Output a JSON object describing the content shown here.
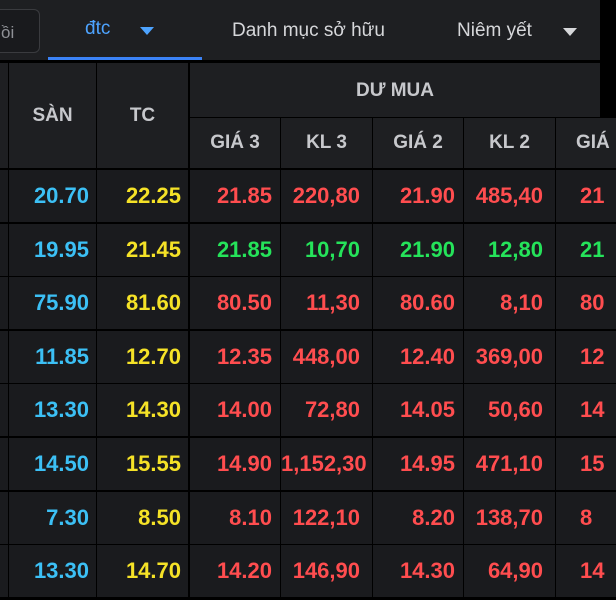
{
  "topbar": {
    "search_placeholder": "ồi",
    "tab_watchlist": "đtc",
    "tab_holdings": "Danh mục sở hữu",
    "tab_listing": "Niêm yết"
  },
  "table": {
    "headers": {
      "floor": "SÀN",
      "ref": "TC",
      "buy_group": "DƯ MUA",
      "price3": "GIÁ 3",
      "vol3": "KL 3",
      "price2": "GIÁ 2",
      "vol2": "KL 2",
      "price1": "GIÁ"
    },
    "rows": [
      {
        "floor": "20.70",
        "ref": "22.25",
        "price3": "21.85",
        "vol3": "220,80",
        "price2": "21.90",
        "vol2": "485,40",
        "price1": "21",
        "trend": "down"
      },
      {
        "floor": "19.95",
        "ref": "21.45",
        "price3": "21.85",
        "vol3": "10,70",
        "price2": "21.90",
        "vol2": "12,80",
        "price1": "21",
        "trend": "up"
      },
      {
        "floor": "75.90",
        "ref": "81.60",
        "price3": "80.50",
        "vol3": "11,30",
        "price2": "80.60",
        "vol2": "8,10",
        "price1": "80",
        "trend": "down"
      },
      {
        "floor": "11.85",
        "ref": "12.70",
        "price3": "12.35",
        "vol3": "448,00",
        "price2": "12.40",
        "vol2": "369,00",
        "price1": "12",
        "trend": "down"
      },
      {
        "floor": "13.30",
        "ref": "14.30",
        "price3": "14.00",
        "vol3": "72,80",
        "price2": "14.05",
        "vol2": "50,60",
        "price1": "14",
        "trend": "down"
      },
      {
        "floor": "14.50",
        "ref": "15.55",
        "price3": "14.90",
        "vol3": "1,152,30",
        "price2": "14.95",
        "vol2": "471,10",
        "price1": "15",
        "trend": "down"
      },
      {
        "floor": "7.30",
        "ref": "8.50",
        "price3": "8.10",
        "vol3": "122,10",
        "price2": "8.20",
        "vol2": "138,70",
        "price1": "8",
        "trend": "down"
      },
      {
        "floor": "13.30",
        "ref": "14.70",
        "price3": "14.20",
        "vol3": "146,90",
        "price2": "14.30",
        "vol2": "64,90",
        "price1": "14",
        "trend": "down"
      }
    ]
  },
  "colors": {
    "floor": "#3cc0f5",
    "ref": "#f5e227",
    "down": "#ff4d4f",
    "up": "#25e35a",
    "accent": "#3b82f6"
  }
}
